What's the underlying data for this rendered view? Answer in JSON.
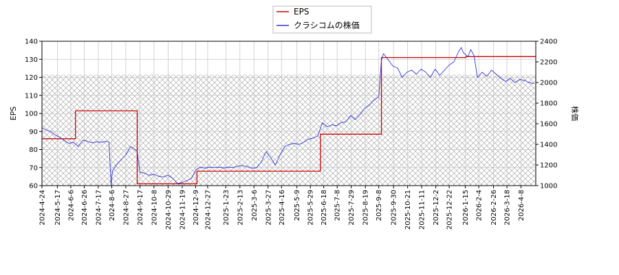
{
  "chart_data": {
    "type": "line",
    "legend": {
      "placement": "top-center",
      "entries": [
        {
          "label": "EPS",
          "color": "#cc0000"
        },
        {
          "label": "クラシコムの株価",
          "color": "#3333cc"
        }
      ]
    },
    "y_left": {
      "label": "EPS",
      "range": [
        60,
        140
      ],
      "ticks": [
        "60",
        "70",
        "80",
        "90",
        "100",
        "110",
        "120",
        "130",
        "140"
      ]
    },
    "y_right": {
      "label": "株価",
      "range": [
        1000,
        2400
      ],
      "ticks": [
        "1000",
        "1200",
        "1400",
        "1600",
        "1800",
        "2000",
        "2200",
        "2400"
      ]
    },
    "x_range": [
      "2024-04-24",
      "2026-04-30"
    ],
    "x_ticks": [
      "2024-4-24",
      "2024-5-17",
      "2024-6-6",
      "2024-6-26",
      "2024-7-17",
      "2024-8-6",
      "2024-8-27",
      "2024-9-17",
      "2024-10-8",
      "2024-10-29",
      "2024-11-19",
      "2024-12-9",
      "2024-12-27",
      "2025-1-23",
      "2025-2-13",
      "2025-3-6",
      "2025-3-27",
      "2025-4-16",
      "2025-5-9",
      "2025-5-29",
      "2025-6-18",
      "2025-7-8",
      "2025-7-29",
      "2025-8-19",
      "2025-9-8",
      "2025-9-30",
      "2025-10-21",
      "2025-11-11",
      "2025-12-2",
      "2025-12-22",
      "2026-1-15",
      "2026-2-4",
      "2026-2-26",
      "2026-3-18",
      "2026-4-8"
    ],
    "grid": true,
    "hatched_band_eps": [
      60,
      121.5
    ],
    "series": [
      {
        "name": "EPS",
        "axis": "left",
        "color": "#cc0000",
        "step": true,
        "points": [
          [
            "2024-04-24",
            86
          ],
          [
            "2024-06-13",
            101.5
          ],
          [
            "2024-09-13",
            61
          ],
          [
            "2024-12-11",
            68
          ],
          [
            "2025-06-13",
            88.5
          ],
          [
            "2025-09-12",
            131
          ],
          [
            "2026-01-16",
            131.5
          ],
          [
            "2026-04-30",
            131.5
          ]
        ]
      },
      {
        "name": "クラシコムの株価",
        "axis": "right",
        "color": "#3333cc",
        "points": [
          [
            "2024-04-24",
            1560
          ],
          [
            "2024-04-30",
            1540
          ],
          [
            "2024-05-06",
            1530
          ],
          [
            "2024-05-13",
            1495
          ],
          [
            "2024-05-20",
            1470
          ],
          [
            "2024-05-27",
            1440
          ],
          [
            "2024-06-03",
            1410
          ],
          [
            "2024-06-10",
            1420
          ],
          [
            "2024-06-17",
            1380
          ],
          [
            "2024-06-24",
            1440
          ],
          [
            "2024-07-01",
            1430
          ],
          [
            "2024-07-08",
            1415
          ],
          [
            "2024-07-15",
            1425
          ],
          [
            "2024-07-22",
            1420
          ],
          [
            "2024-07-29",
            1430
          ],
          [
            "2024-08-02",
            1420
          ],
          [
            "2024-08-05",
            1000
          ],
          [
            "2024-08-07",
            1140
          ],
          [
            "2024-08-13",
            1200
          ],
          [
            "2024-08-20",
            1250
          ],
          [
            "2024-08-27",
            1300
          ],
          [
            "2024-09-03",
            1380
          ],
          [
            "2024-09-10",
            1350
          ],
          [
            "2024-09-13",
            1330
          ],
          [
            "2024-09-17",
            1130
          ],
          [
            "2024-09-24",
            1120
          ],
          [
            "2024-10-01",
            1100
          ],
          [
            "2024-10-08",
            1110
          ],
          [
            "2024-10-15",
            1090
          ],
          [
            "2024-10-22",
            1085
          ],
          [
            "2024-10-29",
            1100
          ],
          [
            "2024-11-05",
            1070
          ],
          [
            "2024-11-12",
            1020
          ],
          [
            "2024-11-19",
            1030
          ],
          [
            "2024-11-26",
            1050
          ],
          [
            "2024-12-03",
            1070
          ],
          [
            "2024-12-09",
            1150
          ],
          [
            "2024-12-16",
            1180
          ],
          [
            "2024-12-23",
            1170
          ],
          [
            "2024-12-30",
            1180
          ],
          [
            "2025-01-06",
            1175
          ],
          [
            "2025-01-13",
            1180
          ],
          [
            "2025-01-20",
            1170
          ],
          [
            "2025-01-27",
            1180
          ],
          [
            "2025-02-03",
            1175
          ],
          [
            "2025-02-10",
            1190
          ],
          [
            "2025-02-17",
            1195
          ],
          [
            "2025-02-24",
            1185
          ],
          [
            "2025-03-03",
            1170
          ],
          [
            "2025-03-10",
            1175
          ],
          [
            "2025-03-17",
            1230
          ],
          [
            "2025-03-24",
            1330
          ],
          [
            "2025-03-31",
            1270
          ],
          [
            "2025-04-07",
            1200
          ],
          [
            "2025-04-14",
            1300
          ],
          [
            "2025-04-21",
            1380
          ],
          [
            "2025-04-28",
            1400
          ],
          [
            "2025-05-05",
            1410
          ],
          [
            "2025-05-12",
            1400
          ],
          [
            "2025-05-19",
            1420
          ],
          [
            "2025-05-26",
            1450
          ],
          [
            "2025-06-02",
            1460
          ],
          [
            "2025-06-09",
            1480
          ],
          [
            "2025-06-16",
            1610
          ],
          [
            "2025-06-23",
            1570
          ],
          [
            "2025-06-30",
            1590
          ],
          [
            "2025-07-07",
            1580
          ],
          [
            "2025-07-14",
            1610
          ],
          [
            "2025-07-21",
            1620
          ],
          [
            "2025-07-28",
            1680
          ],
          [
            "2025-08-04",
            1640
          ],
          [
            "2025-08-11",
            1690
          ],
          [
            "2025-08-18",
            1750
          ],
          [
            "2025-08-25",
            1780
          ],
          [
            "2025-09-01",
            1830
          ],
          [
            "2025-09-08",
            1860
          ],
          [
            "2025-09-12",
            2220
          ],
          [
            "2025-09-15",
            2280
          ],
          [
            "2025-09-22",
            2220
          ],
          [
            "2025-09-29",
            2160
          ],
          [
            "2025-10-06",
            2140
          ],
          [
            "2025-10-13",
            2050
          ],
          [
            "2025-10-20",
            2100
          ],
          [
            "2025-10-27",
            2120
          ],
          [
            "2025-11-03",
            2080
          ],
          [
            "2025-11-10",
            2130
          ],
          [
            "2025-11-17",
            2100
          ],
          [
            "2025-11-24",
            2050
          ],
          [
            "2025-12-01",
            2130
          ],
          [
            "2025-12-08",
            2070
          ],
          [
            "2025-12-15",
            2120
          ],
          [
            "2025-12-22",
            2170
          ],
          [
            "2025-12-29",
            2200
          ],
          [
            "2026-01-05",
            2300
          ],
          [
            "2026-01-09",
            2340
          ],
          [
            "2026-01-12",
            2290
          ],
          [
            "2026-01-19",
            2250
          ],
          [
            "2026-01-23",
            2320
          ],
          [
            "2026-01-28",
            2260
          ],
          [
            "2026-02-02",
            2050
          ],
          [
            "2026-02-09",
            2100
          ],
          [
            "2026-02-16",
            2060
          ],
          [
            "2026-02-23",
            2120
          ],
          [
            "2026-03-02",
            2080
          ],
          [
            "2026-03-09",
            2040
          ],
          [
            "2026-03-16",
            2010
          ],
          [
            "2026-03-23",
            2040
          ],
          [
            "2026-03-30",
            2000
          ],
          [
            "2026-04-06",
            2030
          ],
          [
            "2026-04-13",
            2020
          ],
          [
            "2026-04-20",
            2000
          ],
          [
            "2026-04-27",
            1990
          ]
        ]
      }
    ]
  }
}
